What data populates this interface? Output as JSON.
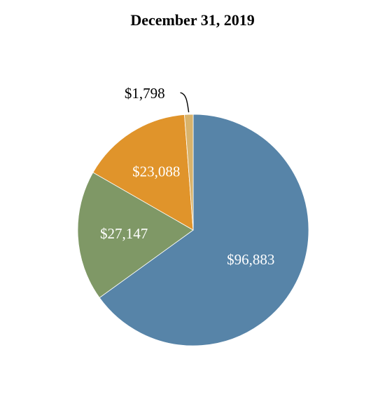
{
  "chart_data": {
    "type": "pie",
    "title": "December 31, 2019",
    "start_angle_deg": 0,
    "direction": "clockwise",
    "slices": [
      {
        "value": 96883,
        "label": "$96,883",
        "color": "#5784a8",
        "label_color": "#ffffff"
      },
      {
        "value": 27147,
        "label": "$27,147",
        "color": "#7f9866",
        "label_color": "#ffffff"
      },
      {
        "value": 23088,
        "label": "$23,088",
        "color": "#e0942b",
        "label_color": "#ffffff"
      },
      {
        "value": 1798,
        "label": "$1,798",
        "color": "#d9b36b",
        "label_color": "#000000",
        "callout": true
      }
    ]
  }
}
